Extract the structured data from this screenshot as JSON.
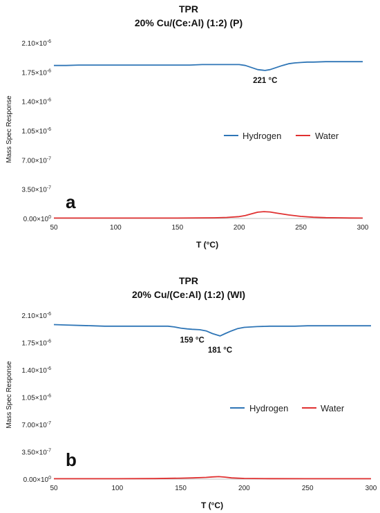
{
  "chart_data": [
    {
      "type": "line",
      "title": "TPR",
      "subtitle": "20% Cu/(Ce:Al) (1:2) (P)",
      "panel_label": "a",
      "xlabel": "T (°C)",
      "ylabel": "Mass Spec Response",
      "xlim": [
        50,
        300
      ],
      "ylim": [
        0,
        2.1e-06
      ],
      "x_ticks": [
        50,
        100,
        150,
        200,
        250,
        300
      ],
      "x_tick_labels": [
        "50",
        "100",
        "150",
        "200",
        "250",
        "300"
      ],
      "y_ticks": [
        0,
        3.5e-07,
        7e-07,
        1.05e-06,
        1.4e-06,
        1.75e-06,
        2.1e-06
      ],
      "y_tick_labels": [
        {
          "m": "0.00",
          "e": "0"
        },
        {
          "m": "3.50",
          "e": "-7"
        },
        {
          "m": "7.00",
          "e": "-7"
        },
        {
          "m": "1.05",
          "e": "-6"
        },
        {
          "m": "1.40",
          "e": "-6"
        },
        {
          "m": "1.75",
          "e": "-6"
        },
        {
          "m": "2.10",
          "e": "-6"
        }
      ],
      "grid": false,
      "legend": "center-right",
      "series": [
        {
          "name": "Hydrogen",
          "color": "#2e75b6",
          "x": [
            50,
            60,
            70,
            80,
            90,
            100,
            110,
            120,
            130,
            140,
            150,
            160,
            170,
            180,
            190,
            195,
            200,
            205,
            210,
            215,
            221,
            225,
            230,
            235,
            240,
            245,
            250,
            255,
            260,
            270,
            280,
            290,
            300
          ],
          "y": [
            1.83e-06,
            1.83e-06,
            1.835e-06,
            1.835e-06,
            1.835e-06,
            1.835e-06,
            1.835e-06,
            1.835e-06,
            1.835e-06,
            1.835e-06,
            1.835e-06,
            1.835e-06,
            1.84e-06,
            1.84e-06,
            1.84e-06,
            1.84e-06,
            1.84e-06,
            1.83e-06,
            1.805e-06,
            1.78e-06,
            1.77e-06,
            1.78e-06,
            1.805e-06,
            1.83e-06,
            1.85e-06,
            1.86e-06,
            1.865e-06,
            1.87e-06,
            1.87e-06,
            1.875e-06,
            1.875e-06,
            1.875e-06,
            1.875e-06
          ]
        },
        {
          "name": "Water",
          "color": "#e03030",
          "x": [
            50,
            100,
            150,
            180,
            190,
            200,
            205,
            210,
            215,
            220,
            225,
            230,
            240,
            250,
            260,
            270,
            280,
            290,
            300
          ],
          "y": [
            5e-09,
            5e-09,
            5e-09,
            8e-09,
            1.2e-08,
            2.2e-08,
            3.5e-08,
            5.5e-08,
            7.5e-08,
            8.2e-08,
            7.8e-08,
            6.5e-08,
            4.2e-08,
            2.5e-08,
            1.5e-08,
            1e-08,
            8e-09,
            6e-09,
            5e-09
          ]
        }
      ],
      "annotations": [
        {
          "text": "221 °C",
          "x": 221,
          "y": 1.62e-06
        }
      ]
    },
    {
      "type": "line",
      "title": "TPR",
      "subtitle": "20% Cu/(Ce:Al) (1:2) (WI)",
      "panel_label": "b",
      "xlabel": "T (°C)",
      "ylabel": "Mass Spec Response",
      "xlim": [
        50,
        300
      ],
      "ylim": [
        0,
        2.1e-06
      ],
      "x_ticks": [
        50,
        100,
        150,
        200,
        250,
        300
      ],
      "x_tick_labels": [
        "50",
        "100",
        "150",
        "200",
        "250",
        "300"
      ],
      "y_ticks": [
        0,
        3.5e-07,
        7e-07,
        1.05e-06,
        1.4e-06,
        1.75e-06,
        2.1e-06
      ],
      "y_tick_labels": [
        {
          "m": "0.00",
          "e": "0"
        },
        {
          "m": "3.50",
          "e": "-7"
        },
        {
          "m": "7.00",
          "e": "-7"
        },
        {
          "m": "1.05",
          "e": "-6"
        },
        {
          "m": "1.40",
          "e": "-6"
        },
        {
          "m": "1.75",
          "e": "-6"
        },
        {
          "m": "2.10",
          "e": "-6"
        }
      ],
      "grid": false,
      "legend": "center-right",
      "series": [
        {
          "name": "Hydrogen",
          "color": "#2e75b6",
          "x": [
            50,
            60,
            70,
            80,
            90,
            100,
            110,
            120,
            130,
            140,
            145,
            150,
            155,
            159,
            165,
            170,
            175,
            181,
            185,
            190,
            195,
            200,
            210,
            220,
            230,
            240,
            250,
            260,
            270,
            280,
            290,
            300
          ],
          "y": [
            1.98e-06,
            1.975e-06,
            1.97e-06,
            1.965e-06,
            1.96e-06,
            1.96e-06,
            1.96e-06,
            1.96e-06,
            1.96e-06,
            1.96e-06,
            1.95e-06,
            1.935e-06,
            1.925e-06,
            1.92e-06,
            1.915e-06,
            1.9e-06,
            1.865e-06,
            1.835e-06,
            1.865e-06,
            1.9e-06,
            1.93e-06,
            1.945e-06,
            1.955e-06,
            1.96e-06,
            1.96e-06,
            1.96e-06,
            1.965e-06,
            1.965e-06,
            1.965e-06,
            1.965e-06,
            1.965e-06,
            1.965e-06
          ]
        },
        {
          "name": "Water",
          "color": "#e03030",
          "x": [
            50,
            100,
            130,
            150,
            160,
            170,
            175,
            180,
            185,
            190,
            200,
            220,
            250,
            300
          ],
          "y": [
            5e-09,
            5e-09,
            7e-09,
            1.2e-08,
            1.6e-08,
            2.2e-08,
            2.8e-08,
            3.2e-08,
            2.6e-08,
            1.6e-08,
            9e-09,
            6e-09,
            5e-09,
            5e-09
          ]
        }
      ],
      "annotations": [
        {
          "text": "159 °C",
          "x": 159,
          "y": 1.75e-06
        },
        {
          "text": "181 °C",
          "x": 181,
          "y": 1.62e-06
        }
      ]
    }
  ]
}
